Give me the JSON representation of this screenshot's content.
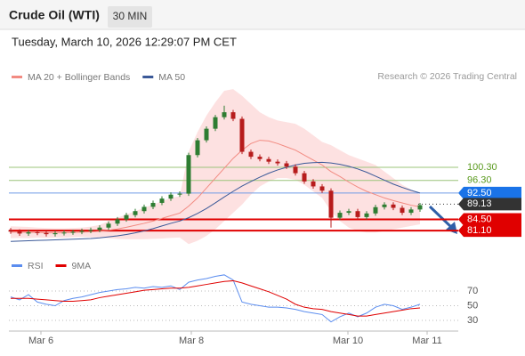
{
  "header": {
    "title": "Crude Oil (WTI)",
    "interval": "30 MIN",
    "timestamp": "Tuesday, March 10, 2026 12:29:07 PM CET",
    "copyright": "Research © 2026 Trading Central"
  },
  "chart_data": [
    {
      "type": "candlestick",
      "up_color": "#2e7d32",
      "down_color": "#b71c1c",
      "xlim": [
        -0.2,
        50.3
      ],
      "xticks": [
        {
          "value": 3.4,
          "label": "Mar 6"
        },
        {
          "value": 20.3,
          "label": "Mar 8"
        },
        {
          "value": 37.9,
          "label": "Mar 10"
        },
        {
          "value": 46.8,
          "label": "Mar 11"
        }
      ],
      "ylim": [
        74.1,
        130.8
      ],
      "open": [
        81.2,
        80.8,
        80.2,
        80.6,
        80.4,
        80.0,
        80.3,
        80.5,
        80.7,
        81.0,
        81.3,
        82.0,
        83.2,
        84.5,
        85.8,
        87.0,
        88.3,
        89.5,
        90.8,
        92.0,
        92.3,
        104.0,
        108.5,
        112.0,
        115.5,
        117.0,
        115.0,
        105.0,
        103.5,
        102.8,
        102.0,
        101.5,
        100.5,
        98.5,
        96.0,
        94.5,
        93.2,
        85.0,
        86.5,
        87.0,
        85.2,
        86.3,
        88.2,
        89.0,
        88.0,
        86.5,
        87.5
      ],
      "high": [
        81.9,
        81.5,
        81.3,
        81.3,
        81.1,
        81.0,
        81.2,
        81.4,
        81.7,
        82.0,
        82.7,
        83.9,
        85.2,
        86.5,
        87.7,
        89.0,
        90.2,
        91.5,
        92.7,
        93.0,
        104.7,
        109.2,
        112.7,
        116.2,
        119.0,
        117.7,
        115.7,
        105.7,
        104.2,
        103.5,
        102.7,
        102.2,
        101.2,
        99.2,
        96.7,
        95.2,
        93.9,
        87.2,
        87.7,
        87.7,
        87.0,
        88.9,
        89.7,
        89.7,
        88.7,
        88.2,
        89.5
      ],
      "low": [
        80.1,
        79.5,
        79.5,
        79.7,
        79.3,
        79.3,
        79.6,
        79.8,
        80.0,
        80.3,
        80.6,
        81.3,
        82.5,
        83.8,
        85.1,
        86.3,
        87.6,
        88.8,
        90.1,
        91.3,
        91.6,
        103.3,
        107.8,
        111.3,
        114.8,
        114.3,
        104.3,
        102.8,
        102.1,
        101.3,
        100.8,
        99.8,
        97.8,
        95.3,
        93.8,
        92.5,
        82.0,
        84.3,
        85.8,
        84.5,
        84.5,
        85.6,
        87.5,
        87.3,
        85.8,
        85.8,
        86.8
      ],
      "close": [
        80.8,
        80.2,
        80.6,
        80.4,
        80.0,
        80.3,
        80.5,
        80.7,
        81.0,
        81.3,
        82.0,
        83.2,
        84.5,
        85.8,
        87.0,
        88.3,
        89.5,
        90.8,
        92.0,
        92.3,
        104.0,
        108.5,
        112.0,
        115.5,
        117.0,
        115.0,
        105.0,
        103.5,
        102.8,
        102.0,
        101.5,
        100.5,
        98.5,
        96.0,
        94.5,
        93.2,
        85.0,
        86.5,
        87.0,
        85.2,
        86.3,
        88.2,
        89.0,
        88.0,
        86.5,
        87.5,
        88.8
      ],
      "series": [
        {
          "name": "MA 20 + Bollinger Bands",
          "color": "#f28b82",
          "band_color": "#fddcdc",
          "values": [
            80.6,
            80.6,
            80.5,
            80.5,
            80.4,
            80.4,
            80.4,
            80.5,
            80.6,
            80.7,
            80.9,
            81.2,
            81.6,
            82.1,
            82.7,
            83.3,
            84.0,
            84.8,
            85.6,
            86.4,
            88.5,
            91.0,
            94.0,
            97.0,
            100.0,
            103.0,
            105.5,
            107.5,
            108.5,
            108.3,
            107.5,
            106.5,
            105.5,
            104.0,
            102.5,
            101.0,
            99.0,
            97.5,
            95.8,
            94.3,
            93.0,
            92.0,
            91.0,
            90.2,
            89.5,
            88.8,
            88.3
          ],
          "upper": [
            82.4,
            82.3,
            82.2,
            82.0,
            81.9,
            81.8,
            81.8,
            81.9,
            82.0,
            82.3,
            82.8,
            84.0,
            85.0,
            86.0,
            87.0,
            88.0,
            89.0,
            90.0,
            91.0,
            91.5,
            105.0,
            111.0,
            116.0,
            120.0,
            123.5,
            124.0,
            122.0,
            119.5,
            117.0,
            115.5,
            114.5,
            114.0,
            113.5,
            112.0,
            110.0,
            108.0,
            107.0,
            105.5,
            104.0,
            103.0,
            102.0,
            101.0,
            99.0,
            97.0,
            95.0,
            93.5,
            92.0
          ],
          "lower": [
            78.8,
            78.9,
            78.8,
            79.0,
            78.9,
            79.0,
            79.0,
            79.1,
            79.2,
            79.1,
            79.0,
            78.8,
            78.6,
            78.5,
            78.5,
            78.5,
            78.6,
            78.7,
            78.9,
            79.0,
            77.0,
            78.0,
            79.5,
            81.5,
            84.0,
            86.5,
            89.0,
            92.0,
            94.5,
            96.0,
            97.0,
            97.0,
            96.5,
            95.0,
            93.0,
            91.0,
            87.0,
            84.0,
            82.0,
            81.0,
            80.5,
            80.5,
            81.0,
            81.5,
            82.0,
            82.5,
            83.0
          ]
        },
        {
          "name": "MA 50",
          "color": "#3b5998",
          "values": [
            77.8,
            77.9,
            78.0,
            78.1,
            78.2,
            78.3,
            78.4,
            78.5,
            78.6,
            78.7,
            78.9,
            79.2,
            79.5,
            79.9,
            80.4,
            81.0,
            81.7,
            82.5,
            83.3,
            84.0,
            85.0,
            86.3,
            87.8,
            89.5,
            91.3,
            93.0,
            94.6,
            96.0,
            97.3,
            98.5,
            99.5,
            100.3,
            101.0,
            101.5,
            101.7,
            101.8,
            101.6,
            101.2,
            100.6,
            99.8,
            98.8,
            97.6,
            96.4,
            95.2,
            94.2,
            93.3,
            92.5
          ]
        }
      ],
      "levels": [
        {
          "value": 100.3,
          "label": "100.30",
          "color": "#9bc47a",
          "text_color": "#5a9a1e",
          "style": "text"
        },
        {
          "value": 96.3,
          "label": "96.30",
          "color": "#9bc47a",
          "text_color": "#5a9a1e",
          "style": "text"
        },
        {
          "value": 92.5,
          "label": "92.50",
          "color": "#6f9be6",
          "text_color": "#1a73e8",
          "style": "box"
        },
        {
          "value": 89.13,
          "label": "89.13",
          "color": "#333333",
          "text_color": "#222222",
          "style": "current"
        },
        {
          "value": 84.5,
          "label": "84.50",
          "color": "#e00000",
          "text_color": "#e00000",
          "style": "box"
        },
        {
          "value": 81.1,
          "label": "81.10",
          "color": "#e00000",
          "text_color": "#e00000",
          "style": "box"
        }
      ]
    },
    {
      "type": "line",
      "ylim": [
        15.5,
        102.7
      ],
      "yticks": [
        30,
        50,
        70
      ],
      "grid": true,
      "series": [
        {
          "name": "RSI",
          "color": "#5b8def",
          "values": [
            62,
            58,
            65,
            55,
            52,
            50,
            57,
            60,
            62,
            65,
            68,
            70,
            72,
            73,
            75,
            74,
            76,
            75,
            77,
            72,
            82,
            85,
            87,
            90,
            92,
            85,
            55,
            52,
            50,
            48,
            48,
            47,
            45,
            42,
            40,
            38,
            28,
            35,
            40,
            35,
            40,
            48,
            52,
            50,
            45,
            48,
            52
          ]
        },
        {
          "name": "9MA",
          "color": "#e00000",
          "values": [
            60,
            60,
            60,
            59,
            58,
            57,
            56,
            56,
            57,
            58,
            61,
            63,
            65,
            67,
            69,
            71,
            72,
            73,
            74,
            74,
            75,
            77,
            79,
            81,
            83,
            84,
            81,
            77,
            73,
            69,
            64,
            59,
            52,
            48,
            46,
            45,
            42,
            40,
            38,
            36,
            36,
            38,
            40,
            42,
            44,
            46,
            47
          ]
        }
      ]
    }
  ]
}
